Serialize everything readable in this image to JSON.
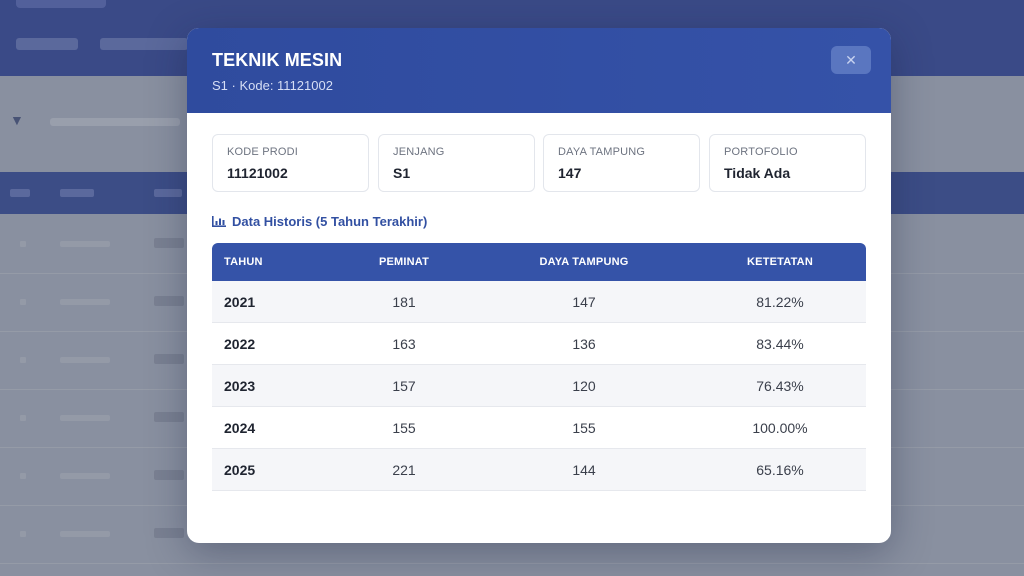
{
  "modal": {
    "title": "TEKNIK MESIN",
    "subtitle": "S1 · Kode: 11121002",
    "close_icon": "close-icon"
  },
  "info_cards": [
    {
      "label": "KODE PRODI",
      "value": "11121002"
    },
    {
      "label": "JENJANG",
      "value": "S1"
    },
    {
      "label": "DAYA TAMPUNG",
      "value": "147"
    },
    {
      "label": "PORTOFOLIO",
      "value": "Tidak Ada"
    }
  ],
  "history": {
    "title": "Data Historis (5 Tahun Terakhir)",
    "icon": "bar-chart-icon",
    "columns": [
      "TAHUN",
      "PEMINAT",
      "DAYA TAMPUNG",
      "KETETATAN"
    ],
    "rows": [
      {
        "tahun": "2021",
        "peminat": "181",
        "daya_tampung": "147",
        "keketatan": "81.22%"
      },
      {
        "tahun": "2022",
        "peminat": "163",
        "daya_tampung": "136",
        "keketatan": "83.44%"
      },
      {
        "tahun": "2023",
        "peminat": "157",
        "daya_tampung": "120",
        "keketatan": "76.43%"
      },
      {
        "tahun": "2024",
        "peminat": "155",
        "daya_tampung": "155",
        "keketatan": "100.00%"
      },
      {
        "tahun": "2025",
        "peminat": "221",
        "daya_tampung": "144",
        "keketatan": "65.16%"
      }
    ]
  },
  "colors": {
    "header_blue": "#3553a8",
    "accent_text": "#3250a2",
    "background_dim": "#8f96a6"
  }
}
